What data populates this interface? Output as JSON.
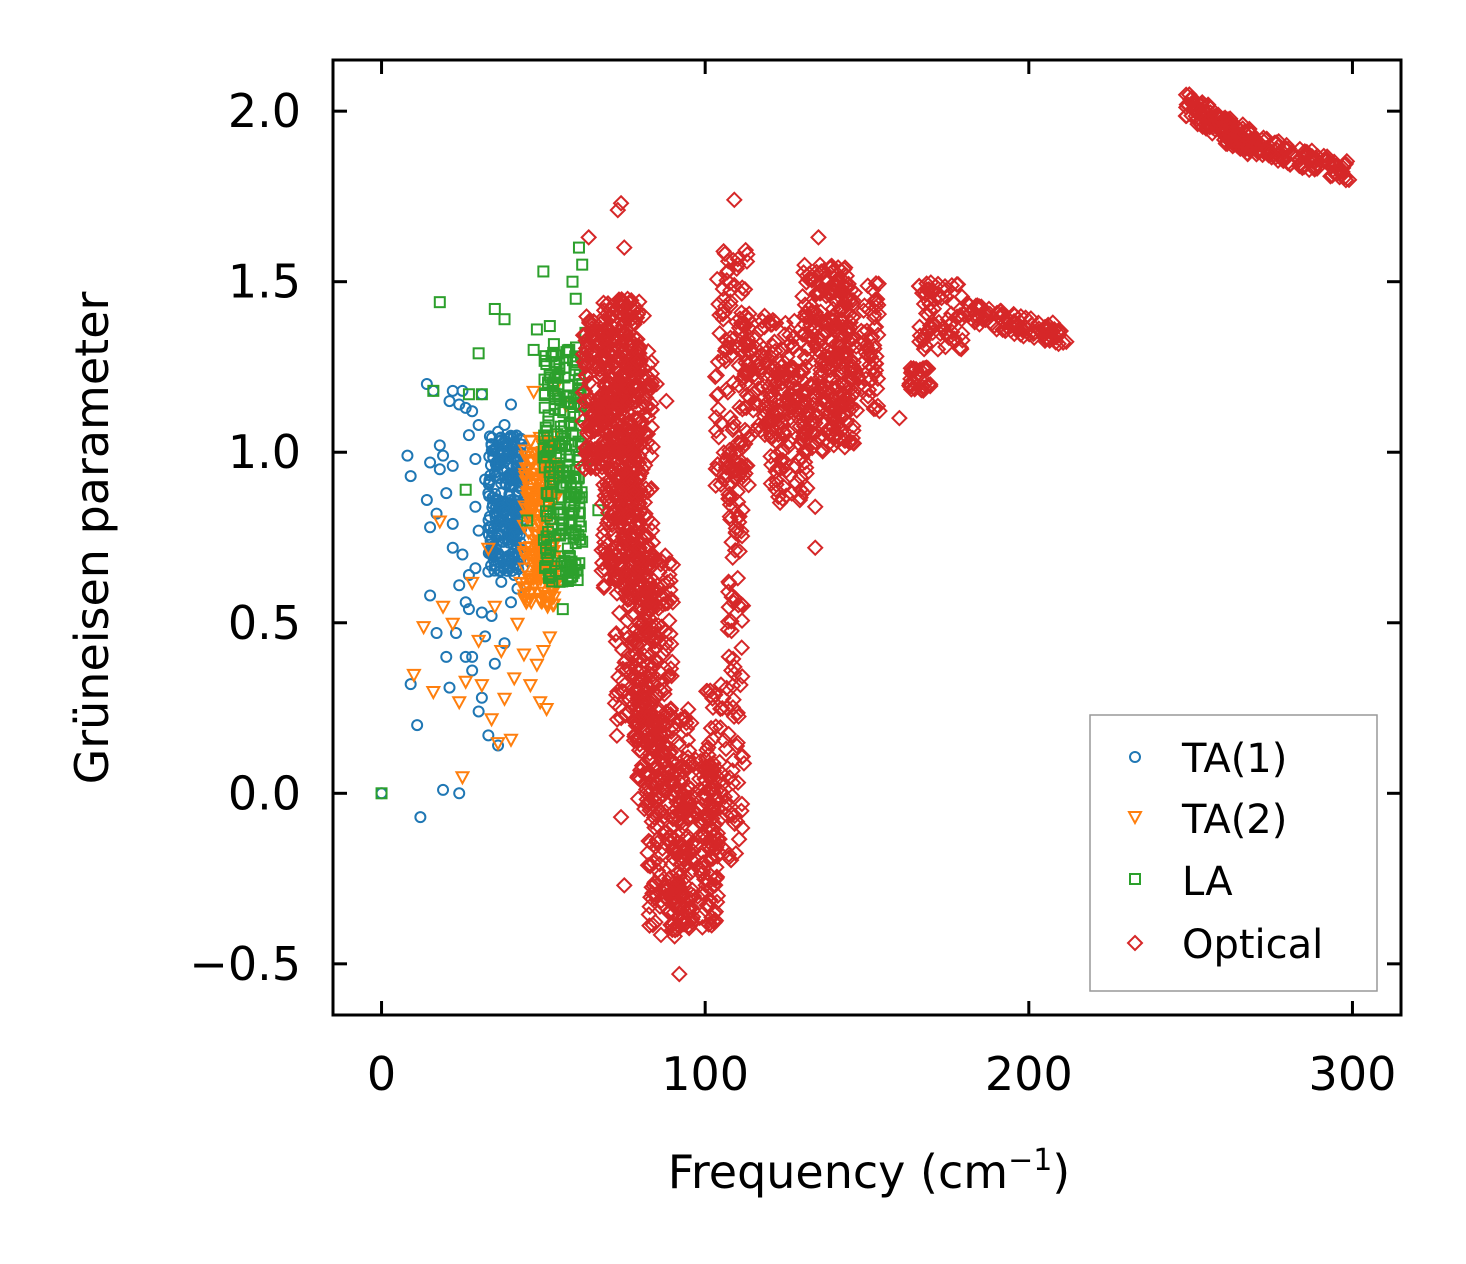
{
  "chart_data": {
    "type": "scatter",
    "title": "",
    "xlabel": "Frequency (cm",
    "xlabel_sup": "−1",
    "xlabel_end": ")",
    "ylabel": "Grüneisen parameter",
    "xlim": [
      -15,
      315
    ],
    "ylim": [
      -0.65,
      2.15
    ],
    "xticks": [
      0,
      100,
      200,
      300
    ],
    "xtick_labels": [
      "0",
      "100",
      "200",
      "300"
    ],
    "yticks": [
      -0.5,
      0.0,
      0.5,
      1.0,
      1.5,
      2.0
    ],
    "ytick_labels": [
      "−0.5",
      "0.0",
      "0.5",
      "1.0",
      "1.5",
      "2.0"
    ],
    "ticks_direction": "in",
    "grid": false,
    "legend_position": "bottom-right",
    "series": [
      {
        "name": "TA(1)",
        "marker": "circle",
        "color": "#1f77b4",
        "points": [
          [
            0,
            0.0
          ],
          [
            8,
            0.99
          ],
          [
            9,
            0.93
          ],
          [
            9,
            0.32
          ],
          [
            11,
            0.2
          ],
          [
            12,
            -0.07
          ],
          [
            14,
            1.2
          ],
          [
            14,
            0.86
          ],
          [
            15,
            0.78
          ],
          [
            15,
            0.97
          ],
          [
            15,
            0.58
          ],
          [
            16,
            1.18
          ],
          [
            17,
            0.82
          ],
          [
            17,
            0.47
          ],
          [
            18,
            1.02
          ],
          [
            18,
            0.95
          ],
          [
            19,
            0.99
          ],
          [
            19,
            0.01
          ],
          [
            20,
            0.88
          ],
          [
            20,
            0.4
          ],
          [
            21,
            0.31
          ],
          [
            21,
            1.15
          ],
          [
            22,
            1.18
          ],
          [
            22,
            0.96
          ],
          [
            22,
            0.79
          ],
          [
            22,
            0.72
          ],
          [
            23,
            0.47
          ],
          [
            24,
            1.14
          ],
          [
            24,
            0.61
          ],
          [
            24,
            0.0
          ],
          [
            25,
            1.18
          ],
          [
            25,
            0.7
          ],
          [
            26,
            1.13
          ],
          [
            26,
            0.56
          ],
          [
            26,
            0.4
          ],
          [
            27,
            1.05
          ],
          [
            27,
            0.64
          ],
          [
            27,
            0.54
          ],
          [
            28,
            1.12
          ],
          [
            28,
            0.4
          ],
          [
            28,
            0.36
          ],
          [
            29,
            0.98
          ],
          [
            29,
            0.84
          ],
          [
            29,
            0.66
          ],
          [
            30,
            1.08
          ],
          [
            30,
            0.77
          ],
          [
            30,
            0.24
          ],
          [
            31,
            1.17
          ],
          [
            31,
            0.53
          ],
          [
            31,
            0.28
          ],
          [
            32,
            0.92
          ],
          [
            32,
            0.46
          ],
          [
            33,
            0.88
          ],
          [
            33,
            0.65
          ],
          [
            33,
            0.17
          ],
          [
            34,
            1.02
          ],
          [
            34,
            0.71
          ],
          [
            34,
            0.52
          ],
          [
            35,
            0.94
          ],
          [
            35,
            0.82
          ],
          [
            35,
            0.38
          ],
          [
            36,
            1.06
          ],
          [
            36,
            0.74
          ],
          [
            36,
            0.14
          ],
          [
            37,
            0.98
          ],
          [
            37,
            0.88
          ],
          [
            37,
            0.62
          ],
          [
            38,
            1.08
          ],
          [
            38,
            0.78
          ],
          [
            38,
            0.44
          ],
          [
            39,
            0.93
          ],
          [
            39,
            0.69
          ],
          [
            40,
            1.14
          ],
          [
            40,
            0.86
          ],
          [
            40,
            0.56
          ],
          [
            41,
            1.02
          ],
          [
            41,
            0.76
          ],
          [
            41,
            0.64
          ],
          [
            42,
            0.96
          ],
          [
            42,
            0.82
          ],
          [
            42,
            0.6
          ],
          [
            43,
            1.04
          ],
          [
            43,
            0.9
          ],
          [
            43,
            0.72
          ]
        ],
        "clusters": [
          {
            "x": [
              33,
              44
            ],
            "y": [
              0.65,
              1.05
            ],
            "n": 260
          }
        ]
      },
      {
        "name": "TA(2)",
        "marker": "triangle-down",
        "color": "#ff7f0e",
        "points": [
          [
            10,
            0.35
          ],
          [
            13,
            0.49
          ],
          [
            16,
            0.3
          ],
          [
            18,
            0.8
          ],
          [
            19,
            0.55
          ],
          [
            22,
            0.5
          ],
          [
            24,
            0.27
          ],
          [
            25,
            0.05
          ],
          [
            26,
            0.33
          ],
          [
            28,
            0.62
          ],
          [
            30,
            0.45
          ],
          [
            31,
            0.32
          ],
          [
            33,
            0.72
          ],
          [
            34,
            0.22
          ],
          [
            35,
            0.55
          ],
          [
            36,
            0.15
          ],
          [
            37,
            0.42
          ],
          [
            38,
            0.28
          ],
          [
            40,
            0.16
          ],
          [
            41,
            0.34
          ],
          [
            42,
            0.5
          ],
          [
            43,
            0.62
          ],
          [
            44,
            0.41
          ],
          [
            45,
            0.95
          ],
          [
            46,
            0.32
          ],
          [
            47,
            1.18
          ],
          [
            48,
            0.38
          ],
          [
            49,
            0.27
          ],
          [
            50,
            0.88
          ],
          [
            50,
            0.42
          ],
          [
            51,
            0.25
          ],
          [
            52,
            0.46
          ],
          [
            53,
            0.96
          ],
          [
            54,
            1.2
          ],
          [
            56,
            0.64
          ],
          [
            57,
            1.14
          ]
        ],
        "clusters": [
          {
            "x": [
              44,
              54
            ],
            "y": [
              0.55,
              1.05
            ],
            "n": 220
          }
        ]
      },
      {
        "name": "LA",
        "marker": "square",
        "color": "#2ca02c",
        "points": [
          [
            0,
            0.0
          ],
          [
            16,
            1.18
          ],
          [
            18,
            1.44
          ],
          [
            26,
            0.89
          ],
          [
            27,
            1.17
          ],
          [
            30,
            1.29
          ],
          [
            31,
            1.17
          ],
          [
            35,
            1.42
          ],
          [
            38,
            1.39
          ],
          [
            45,
            0.8
          ],
          [
            47,
            1.3
          ],
          [
            48,
            1.36
          ],
          [
            50,
            1.53
          ],
          [
            52,
            1.37
          ],
          [
            53,
            1.18
          ],
          [
            55,
            0.62
          ],
          [
            56,
            0.54
          ],
          [
            58,
            1.3
          ],
          [
            59,
            1.5
          ],
          [
            60,
            1.45
          ],
          [
            60,
            0.76
          ],
          [
            61,
            1.6
          ],
          [
            62,
            1.55
          ],
          [
            63,
            1.35
          ],
          [
            65,
            0.98
          ],
          [
            67,
            0.83
          ],
          [
            62,
            1.2
          ]
        ],
        "clusters": [
          {
            "x": [
              50,
              62
            ],
            "y": [
              0.62,
              1.32
            ],
            "n": 230
          }
        ]
      },
      {
        "name": "Optical",
        "marker": "diamond",
        "color": "#d62728",
        "points": [
          [
            64,
            1.63
          ],
          [
            73,
            1.71
          ],
          [
            74,
            1.73
          ],
          [
            75,
            1.6
          ],
          [
            78,
            1.38
          ],
          [
            81,
            1.4
          ],
          [
            85,
            1.2
          ],
          [
            88,
            1.15
          ],
          [
            90,
            0.67
          ],
          [
            92,
            -0.53
          ],
          [
            74,
            -0.07
          ],
          [
            75,
            -0.27
          ],
          [
            109,
            1.74
          ],
          [
            113,
            1.58
          ],
          [
            135,
            1.63
          ],
          [
            134,
            0.72
          ],
          [
            134,
            0.84
          ],
          [
            160,
            1.1
          ]
        ],
        "clusters": [
          {
            "x": [
              62,
              70
            ],
            "y": [
              0.95,
              1.4
            ],
            "n": 130
          },
          {
            "x": [
              68,
              80
            ],
            "y": [
              0.6,
              1.45
            ],
            "n": 380
          },
          {
            "x": [
              72,
              84
            ],
            "y": [
              0.15,
              1.3
            ],
            "n": 320
          },
          {
            "x": [
              78,
              90
            ],
            "y": [
              -0.05,
              0.7
            ],
            "n": 200
          },
          {
            "x": [
              82,
              96
            ],
            "y": [
              -0.42,
              0.25
            ],
            "n": 200
          },
          {
            "x": [
              90,
              104
            ],
            "y": [
              -0.4,
              0.1
            ],
            "n": 180
          },
          {
            "x": [
              100,
              112
            ],
            "y": [
              -0.2,
              0.35
            ],
            "n": 90
          },
          {
            "x": [
              103,
              114
            ],
            "y": [
              0.9,
              1.6
            ],
            "n": 120
          },
          {
            "x": [
              107,
              112
            ],
            "y": [
              0.3,
              1.0
            ],
            "n": 60
          },
          {
            "x": [
              112,
              128
            ],
            "y": [
              1.05,
              1.4
            ],
            "n": 110
          },
          {
            "x": [
              120,
              132
            ],
            "y": [
              0.85,
              1.25
            ],
            "n": 90
          },
          {
            "x": [
              130,
              146
            ],
            "y": [
              1.0,
              1.55
            ],
            "n": 260
          },
          {
            "x": [
              138,
              154
            ],
            "y": [
              1.1,
              1.5
            ],
            "n": 120
          },
          {
            "x": [
              163,
              170
            ],
            "y": [
              1.18,
              1.25
            ],
            "n": 30
          },
          {
            "x": [
              166,
              180
            ],
            "y": [
              1.3,
              1.5
            ],
            "n": 70
          }
        ],
        "bands": [
          {
            "from": [
              180,
              1.41
            ],
            "to": [
              212,
              1.34
            ],
            "spread": 0.03,
            "n": 90
          },
          {
            "from": [
              248,
              2.02
            ],
            "to": [
              270,
              1.9
            ],
            "spread": 0.04,
            "n": 110
          },
          {
            "from": [
              260,
              1.93
            ],
            "to": [
              300,
              1.82
            ],
            "spread": 0.03,
            "n": 140
          }
        ]
      }
    ]
  }
}
